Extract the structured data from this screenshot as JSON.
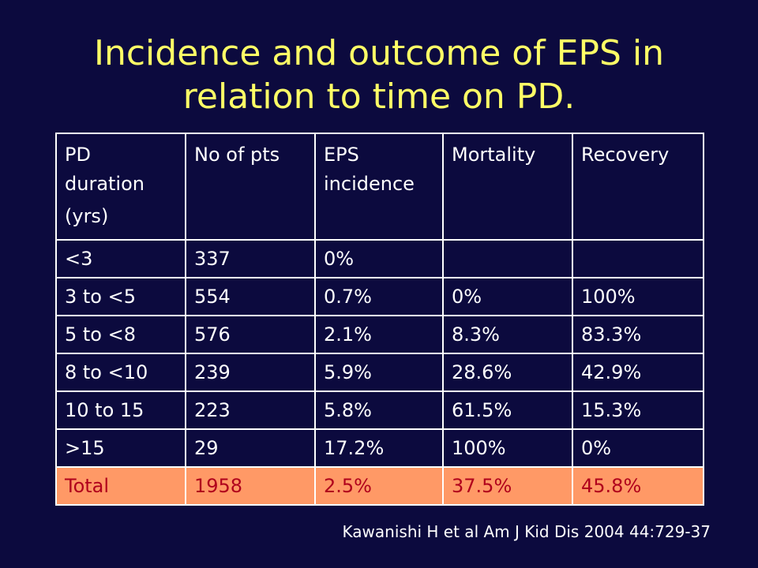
{
  "title": {
    "line1": "Incidence and outcome of EPS in",
    "line2": "relation to time on PD."
  },
  "table": {
    "headers": {
      "pd_duration": [
        "PD",
        "duration",
        "(yrs)"
      ],
      "no_of_pts": "No of pts",
      "eps_incidence": [
        "EPS",
        "incidence"
      ],
      "mortality": "Mortality",
      "recovery": "Recovery"
    },
    "rows": [
      {
        "duration": "<3",
        "pts": "337",
        "incidence": "0%",
        "mortality": "",
        "recovery": ""
      },
      {
        "duration": "3 to <5",
        "pts": "554",
        "incidence": "0.7%",
        "mortality": "0%",
        "recovery": "100%"
      },
      {
        "duration": "5 to <8",
        "pts": "576",
        "incidence": "2.1%",
        "mortality": "8.3%",
        "recovery": "83.3%"
      },
      {
        "duration": "8 to <10",
        "pts": "239",
        "incidence": "5.9%",
        "mortality": "28.6%",
        "recovery": "42.9%"
      },
      {
        "duration": "10 to 15",
        "pts": "223",
        "incidence": "5.8%",
        "mortality": "61.5%",
        "recovery": "15.3%"
      },
      {
        "duration": ">15",
        "pts": "29",
        "incidence": "17.2%",
        "mortality": "100%",
        "recovery": "0%"
      }
    ],
    "total": {
      "duration": "Total",
      "pts": "1958",
      "incidence": "2.5%",
      "mortality": "37.5%",
      "recovery": "45.8%"
    }
  },
  "citation": "Kawanishi H et al Am J Kid Dis 2004 44:729-37",
  "colors": {
    "background": "#0c0a3e",
    "title": "#ffff66",
    "total_row_bg": "#ff9966",
    "total_row_text": "#b0001c"
  }
}
